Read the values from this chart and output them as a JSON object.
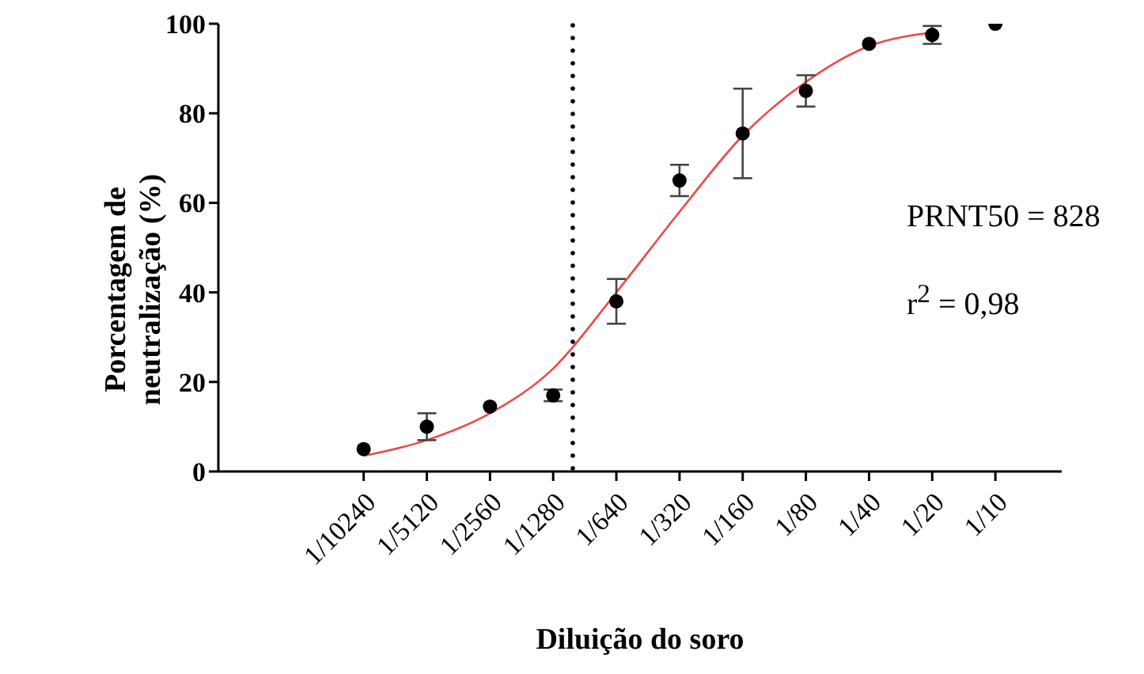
{
  "chart_data": {
    "type": "scatter",
    "xlabel": "Diluição do soro",
    "ylabel": "Porcentagem de neutralização (%)",
    "categories": [
      "1/10240",
      "1/5120",
      "1/2560",
      "1/1280",
      "1/640",
      "1/320",
      "1/160",
      "1/80",
      "1/40",
      "1/20",
      "1/10"
    ],
    "ylim": [
      0,
      100
    ],
    "yticks": [
      0,
      20,
      40,
      60,
      80,
      100
    ],
    "marker": "circle",
    "series": [
      {
        "type": "line",
        "color": "#f04848",
        "marker": "none",
        "values": [
          3.5,
          7,
          13,
          23,
          40,
          58,
          75,
          87,
          95,
          98,
          null
        ]
      },
      {
        "color": "#000000",
        "values": [
          5,
          10,
          14.5,
          17,
          38,
          65,
          75.5,
          85,
          95.5,
          97.5,
          100
        ],
        "errors": [
          null,
          3,
          null,
          1.3,
          5,
          3.5,
          10,
          3.5,
          null,
          2,
          null
        ]
      }
    ],
    "annotations": [
      "PRNT50 = 828",
      "r$^{2}$ = 0,98"
    ]
  }
}
